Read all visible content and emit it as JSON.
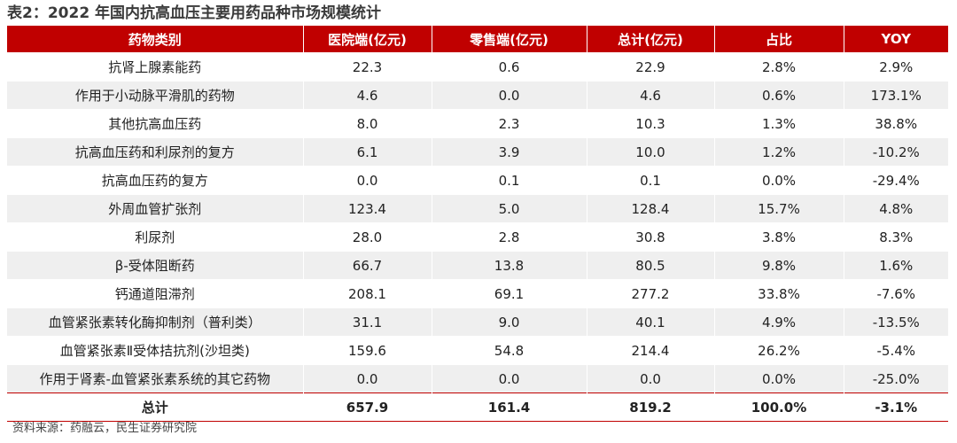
{
  "title": "表2：2022 年国内抗高血压主要用药品种市场规模统计",
  "columns": [
    "药物类别",
    "医院端(亿元)",
    "零售端(亿元)",
    "总计(亿元)",
    "占比",
    "YOY"
  ],
  "rows": [
    [
      "抗肾上腺素能药",
      "22.3",
      "0.6",
      "22.9",
      "2.8%",
      "2.9%"
    ],
    [
      "作用于小动脉平滑肌的药物",
      "4.6",
      "0.0",
      "4.6",
      "0.6%",
      "173.1%"
    ],
    [
      "其他抗高血压药",
      "8.0",
      "2.3",
      "10.3",
      "1.3%",
      "38.8%"
    ],
    [
      "抗高血压药和利尿剂的复方",
      "6.1",
      "3.9",
      "10.0",
      "1.2%",
      "-10.2%"
    ],
    [
      "抗高血压药的复方",
      "0.0",
      "0.1",
      "0.1",
      "0.0%",
      "-29.4%"
    ],
    [
      "外周血管扩张剂",
      "123.4",
      "5.0",
      "128.4",
      "15.7%",
      "4.8%"
    ],
    [
      "利尿剂",
      "28.0",
      "2.8",
      "30.8",
      "3.8%",
      "8.3%"
    ],
    [
      "β-受体阻断药",
      "66.7",
      "13.8",
      "80.5",
      "9.8%",
      "1.6%"
    ],
    [
      "钙通道阻滞剂",
      "208.1",
      "69.1",
      "277.2",
      "33.8%",
      "-7.6%"
    ],
    [
      "血管紧张素转化酶抑制剂（普利类）",
      "31.1",
      "9.0",
      "40.1",
      "4.9%",
      "-13.5%"
    ],
    [
      "血管紧张素Ⅱ受体拮抗剂(沙坦类)",
      "159.6",
      "54.8",
      "214.4",
      "26.2%",
      "-5.4%"
    ],
    [
      "作用于肾素-血管紧张素系统的其它药物",
      "0.0",
      "0.0",
      "0.0",
      "0.0%",
      "-25.0%"
    ]
  ],
  "total": [
    "总计",
    "657.9",
    "161.4",
    "819.2",
    "100.0%",
    "-3.1%"
  ],
  "source": "资料来源：药融云，民生证券研究院",
  "colors": {
    "header_bg": "#c00000",
    "stripe_bg": "#efefef"
  }
}
